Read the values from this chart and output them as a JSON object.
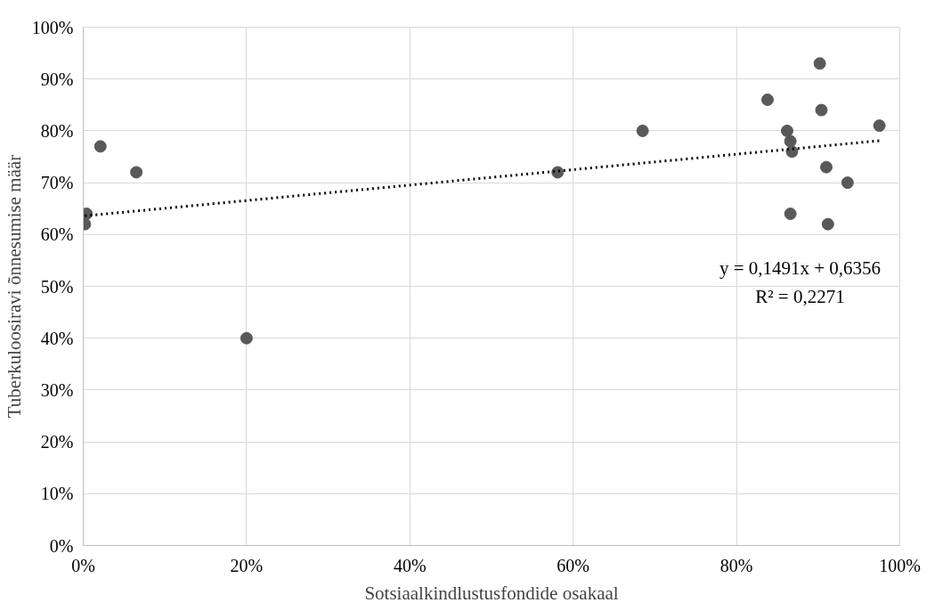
{
  "chart_data": {
    "type": "scatter",
    "xlabel": "Sotsiaalkindlustusfondide osakaal",
    "ylabel": "Tuberkuloosiravi õnnesumise määr",
    "series": [
      {
        "color": "#595959",
        "marker": "circle",
        "x": [
          0.002,
          0.004,
          0.021,
          0.065,
          0.2,
          0.581,
          0.685,
          0.838,
          0.862,
          0.866,
          0.868,
          0.866,
          0.902,
          0.904,
          0.91,
          0.912,
          0.936,
          0.975
        ],
        "values": [
          0.62,
          0.64,
          0.77,
          0.72,
          0.4,
          0.72,
          0.8,
          0.86,
          0.8,
          0.78,
          0.76,
          0.64,
          0.93,
          0.84,
          0.73,
          0.62,
          0.7,
          0.81
        ]
      },
      {
        "type": "line",
        "color": "#000000",
        "line_style": "dotted",
        "x": [
          0.002,
          0.975
        ],
        "values": [
          0.636,
          0.781
        ]
      }
    ],
    "annotations": [
      "y = 0,1491x + 0,6356",
      "R² = 0,2271"
    ],
    "xlim": [
      0,
      1
    ],
    "ylim": [
      0,
      1
    ],
    "xticks": [
      {
        "value": 0,
        "label": "0%"
      },
      {
        "value": 0.2,
        "label": "20%"
      },
      {
        "value": 0.4,
        "label": "40%"
      },
      {
        "value": 0.6,
        "label": "60%"
      },
      {
        "value": 0.8,
        "label": "80%"
      },
      {
        "value": 1,
        "label": "100%"
      }
    ],
    "yticks": [
      {
        "value": 0,
        "label": "0%"
      },
      {
        "value": 0.1,
        "label": "10%"
      },
      {
        "value": 0.2,
        "label": "20%"
      },
      {
        "value": 0.3,
        "label": "30%"
      },
      {
        "value": 0.4,
        "label": "40%"
      },
      {
        "value": 0.5,
        "label": "50%"
      },
      {
        "value": 0.6,
        "label": "60%"
      },
      {
        "value": 0.7,
        "label": "70%"
      },
      {
        "value": 0.8,
        "label": "80%"
      },
      {
        "value": 0.9,
        "label": "90%"
      },
      {
        "value": 1,
        "label": "100%"
      }
    ],
    "grid": true
  }
}
